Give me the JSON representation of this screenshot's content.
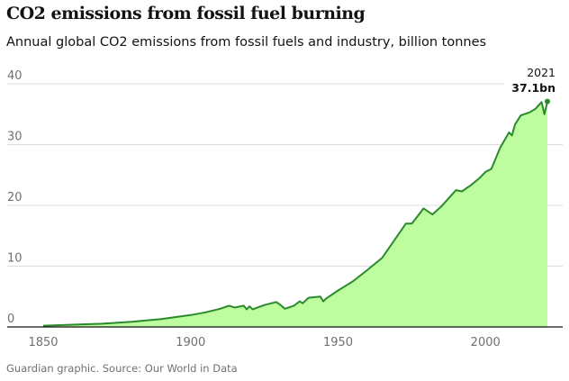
{
  "title": "CO2 emissions from fossil fuel burning",
  "subtitle": "Annual global CO2 emissions from fossil fuels and industry, billion tonnes",
  "source": "Guardian graphic. Source: Our World in Data",
  "colors": {
    "line": "#2b8a2b",
    "fill": "#bdfc9f",
    "grid": "#dcdcdc",
    "axis": "#121212"
  },
  "chart_data": {
    "type": "area",
    "title": "CO2 emissions from fossil fuel burning",
    "xlabel": "",
    "ylabel": "",
    "xlim": [
      1850,
      2021
    ],
    "ylim": [
      0,
      40
    ],
    "grid": true,
    "x_ticks": [
      "1850",
      "1900",
      "1950",
      "2000"
    ],
    "y_ticks": [
      "0",
      "10",
      "20",
      "30",
      "40"
    ],
    "annotation": {
      "year": "2021",
      "value_label": "37.1bn"
    },
    "x": [
      1850,
      1860,
      1870,
      1880,
      1890,
      1900,
      1905,
      1910,
      1913,
      1915,
      1918,
      1919,
      1920,
      1921,
      1925,
      1929,
      1930,
      1932,
      1935,
      1937,
      1938,
      1940,
      1944,
      1945,
      1946,
      1950,
      1955,
      1960,
      1965,
      1970,
      1973,
      1975,
      1979,
      1982,
      1985,
      1990,
      1992,
      1995,
      1998,
      2000,
      2002,
      2005,
      2008,
      2009,
      2010,
      2012,
      2015,
      2017,
      2019,
      2020,
      2021
    ],
    "y": [
      0.2,
      0.37,
      0.53,
      0.85,
      1.3,
      1.95,
      2.4,
      3.0,
      3.5,
      3.2,
      3.5,
      2.9,
      3.4,
      2.9,
      3.6,
      4.1,
      3.8,
      3.0,
      3.5,
      4.2,
      3.9,
      4.8,
      5.0,
      4.2,
      4.7,
      6.0,
      7.5,
      9.4,
      11.4,
      14.9,
      17.0,
      17.0,
      19.5,
      18.5,
      19.8,
      22.5,
      22.3,
      23.3,
      24.5,
      25.5,
      26.0,
      29.5,
      32.0,
      31.5,
      33.3,
      34.8,
      35.3,
      35.9,
      37.0,
      35.0,
      37.1
    ]
  }
}
